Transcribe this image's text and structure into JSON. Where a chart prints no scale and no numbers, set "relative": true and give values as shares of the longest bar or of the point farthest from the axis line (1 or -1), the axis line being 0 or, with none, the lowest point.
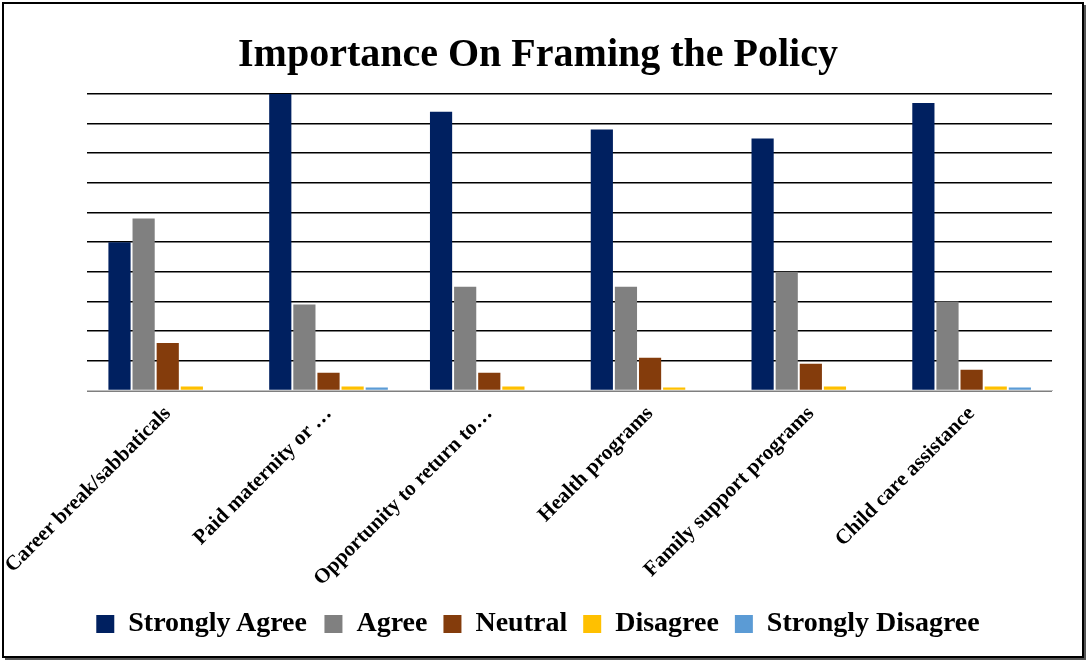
{
  "chart_data": {
    "type": "bar",
    "title": "Importance On Framing the Policy",
    "relative": true,
    "grid": "y",
    "legend": "bottom",
    "categories": [
      "Career break/sabbaticals",
      "Paid maternity or …",
      "Opportunity to return to…",
      "Health programs",
      "Family support programs",
      "Child care assistance"
    ],
    "series": [
      {
        "name": "Strongly Agree",
        "color": "#002060",
        "values": [
          0.5,
          1,
          0.94,
          0.88,
          0.85,
          0.97
        ]
      },
      {
        "name": "Agree",
        "color": "#808080",
        "values": [
          0.58,
          0.29,
          0.35,
          0.35,
          0.4,
          0.3
        ]
      },
      {
        "name": "Neutral",
        "color": "#843c0c",
        "values": [
          0.16,
          0.06,
          0.06,
          0.11,
          0.09,
          0.07
        ]
      },
      {
        "name": "Disagree",
        "color": "#ffc000",
        "values": [
          0.013,
          0.013,
          0.013,
          0.01,
          0.013,
          0.013
        ]
      },
      {
        "name": "Strongly Disagree",
        "color": "#5b9bd5",
        "values": [
          0,
          0.01,
          0,
          0,
          0,
          0.01
        ]
      }
    ]
  }
}
